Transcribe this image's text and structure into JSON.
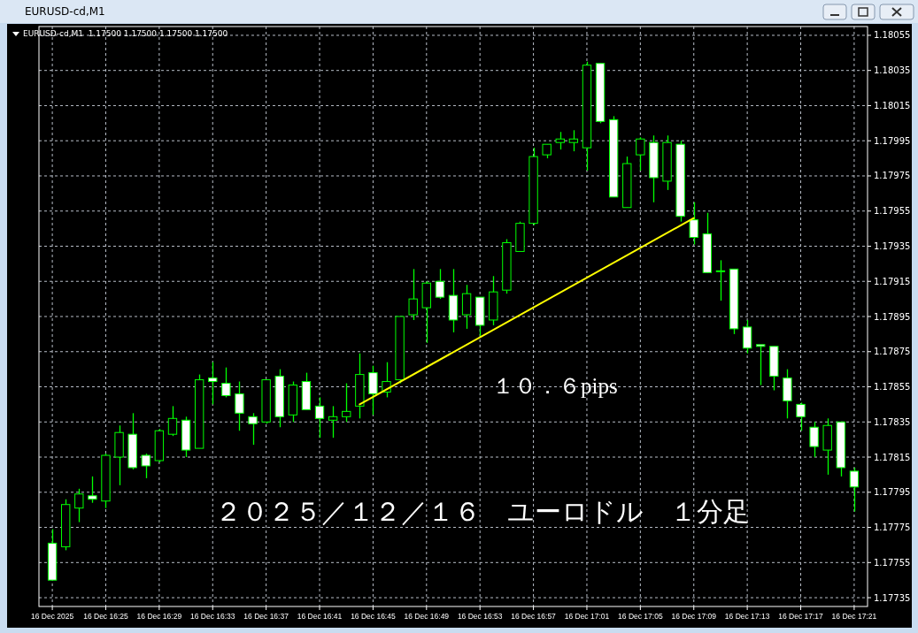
{
  "chart_data": {
    "type": "candlestick",
    "title": "EURUSD-cd,M1",
    "subtitle": "EURUSD-cd,M1  1.17500 1.17500 1.17500 1.17500",
    "annotations": [
      "１０．６pips",
      "２０２５／１２／１６　ユーロドル　１分足"
    ],
    "x": [
      "2025-12-16T16:21",
      "2025-12-16T16:22",
      "2025-12-16T16:23",
      "2025-12-16T16:24",
      "2025-12-16T16:25",
      "2025-12-16T16:26",
      "2025-12-16T16:27",
      "2025-12-16T16:28",
      "2025-12-16T16:29",
      "2025-12-16T16:30",
      "2025-12-16T16:31",
      "2025-12-16T16:32",
      "2025-12-16T16:33",
      "2025-12-16T16:34",
      "2025-12-16T16:35",
      "2025-12-16T16:36",
      "2025-12-16T16:37",
      "2025-12-16T16:38",
      "2025-12-16T16:39",
      "2025-12-16T16:40",
      "2025-12-16T16:41",
      "2025-12-16T16:42",
      "2025-12-16T16:43",
      "2025-12-16T16:44",
      "2025-12-16T16:45",
      "2025-12-16T16:46",
      "2025-12-16T16:47",
      "2025-12-16T16:48",
      "2025-12-16T16:49",
      "2025-12-16T16:50",
      "2025-12-16T16:51",
      "2025-12-16T16:52",
      "2025-12-16T16:53",
      "2025-12-16T16:54",
      "2025-12-16T16:55",
      "2025-12-16T16:56",
      "2025-12-16T16:57",
      "2025-12-16T16:58",
      "2025-12-16T16:59",
      "2025-12-16T17:00",
      "2025-12-16T17:01",
      "2025-12-16T17:02",
      "2025-12-16T17:03",
      "2025-12-16T17:04",
      "2025-12-16T17:05",
      "2025-12-16T17:06",
      "2025-12-16T17:07",
      "2025-12-16T17:08",
      "2025-12-16T17:09",
      "2025-12-16T17:10",
      "2025-12-16T17:11",
      "2025-12-16T17:12",
      "2025-12-16T17:13",
      "2025-12-16T17:14",
      "2025-12-16T17:15",
      "2025-12-16T17:16",
      "2025-12-16T17:17",
      "2025-12-16T17:18",
      "2025-12-16T17:19",
      "2025-12-16T17:20",
      "2025-12-16T17:21"
    ],
    "series": [
      {
        "color": "#00ff00",
        "ohlc": [
          [
            1.17766,
            1.17774,
            1.17745,
            1.17745
          ],
          [
            1.17764,
            1.17791,
            1.17762,
            1.17788
          ],
          [
            1.17786,
            1.17797,
            1.17778,
            1.17794
          ],
          [
            1.17793,
            1.17804,
            1.17789,
            1.17791
          ],
          [
            1.1779,
            1.17817,
            1.17786,
            1.17816
          ],
          [
            1.17815,
            1.17833,
            1.17799,
            1.17829
          ],
          [
            1.17828,
            1.1784,
            1.17808,
            1.17809
          ],
          [
            1.17816,
            1.17817,
            1.17803,
            1.1781
          ],
          [
            1.17813,
            1.17831,
            1.17812,
            1.1783
          ],
          [
            1.17828,
            1.17844,
            1.17827,
            1.17837
          ],
          [
            1.17836,
            1.17838,
            1.17815,
            1.17819
          ],
          [
            1.1782,
            1.17862,
            1.1782,
            1.17859
          ],
          [
            1.1786,
            1.17869,
            1.17845,
            1.17858
          ],
          [
            1.17857,
            1.17866,
            1.17849,
            1.1785
          ],
          [
            1.17851,
            1.17858,
            1.1783,
            1.1784
          ],
          [
            1.17838,
            1.1784,
            1.17822,
            1.17834
          ],
          [
            1.17835,
            1.17859,
            1.17834,
            1.17859
          ],
          [
            1.17861,
            1.17865,
            1.17832,
            1.17838
          ],
          [
            1.17839,
            1.17858,
            1.17835,
            1.17856
          ],
          [
            1.17858,
            1.17863,
            1.17842,
            1.17842
          ],
          [
            1.17844,
            1.17849,
            1.17826,
            1.17837
          ],
          [
            1.17836,
            1.17844,
            1.17826,
            1.17838
          ],
          [
            1.17838,
            1.17857,
            1.17835,
            1.17841
          ],
          [
            1.17844,
            1.17874,
            1.17837,
            1.17862
          ],
          [
            1.17863,
            1.17867,
            1.17839,
            1.17851
          ],
          [
            1.17852,
            1.17869,
            1.17849,
            1.17858
          ],
          [
            1.17859,
            1.17895,
            1.17857,
            1.17895
          ],
          [
            1.17896,
            1.17922,
            1.17893,
            1.17905
          ],
          [
            1.179,
            1.17915,
            1.1788,
            1.17914
          ],
          [
            1.17915,
            1.17922,
            1.17905,
            1.17906
          ],
          [
            1.17907,
            1.17922,
            1.17886,
            1.17893
          ],
          [
            1.17896,
            1.17913,
            1.17888,
            1.17908
          ],
          [
            1.17906,
            1.17906,
            1.17884,
            1.1789
          ],
          [
            1.17893,
            1.17918,
            1.1789,
            1.17909
          ],
          [
            1.1791,
            1.17939,
            1.17908,
            1.17937
          ],
          [
            1.17932,
            1.17949,
            1.17932,
            1.17948
          ],
          [
            1.17948,
            1.17991,
            1.17947,
            1.17986
          ],
          [
            1.17987,
            1.17993,
            1.17985,
            1.17993
          ],
          [
            1.17994,
            1.18,
            1.1799,
            1.17996
          ],
          [
            1.17994,
            1.18001,
            1.17989,
            1.17996
          ],
          [
            1.17991,
            1.1804,
            1.17978,
            1.18038
          ],
          [
            1.18039,
            1.18039,
            1.18005,
            1.18006
          ],
          [
            1.18007,
            1.18009,
            1.17963,
            1.17963
          ],
          [
            1.17957,
            1.17986,
            1.17957,
            1.17982
          ],
          [
            1.17987,
            1.17997,
            1.17978,
            1.17996
          ],
          [
            1.17994,
            1.17998,
            1.1796,
            1.17974
          ],
          [
            1.17972,
            1.17998,
            1.17967,
            1.17994
          ],
          [
            1.17993,
            1.17995,
            1.17949,
            1.17952
          ],
          [
            1.1795,
            1.1796,
            1.17936,
            1.1794
          ],
          [
            1.17942,
            1.17954,
            1.1792,
            1.1792
          ],
          [
            1.17921,
            1.17927,
            1.17904,
            1.17921
          ],
          [
            1.17922,
            1.17922,
            1.17885,
            1.17888
          ],
          [
            1.17889,
            1.17893,
            1.17874,
            1.17877
          ],
          [
            1.17879,
            1.17879,
            1.17856,
            1.17878
          ],
          [
            1.17878,
            1.17878,
            1.17853,
            1.17861
          ],
          [
            1.1786,
            1.17865,
            1.17837,
            1.17847
          ],
          [
            1.17845,
            1.17846,
            1.1783,
            1.17838
          ],
          [
            1.17832,
            1.17835,
            1.17815,
            1.17821
          ],
          [
            1.17819,
            1.17837,
            1.17805,
            1.17833
          ],
          [
            1.17835,
            1.17835,
            1.17804,
            1.17809
          ],
          [
            1.17807,
            1.17809,
            1.17784,
            1.17798
          ]
        ]
      },
      {
        "color": "#ffff00",
        "type": "line",
        "x": [
          "2025-12-16T16:44",
          "2025-12-16T17:09"
        ],
        "values": [
          1.17845,
          1.17951
        ]
      }
    ],
    "xlim": [
      "2025-12-16T16:20",
      "2025-12-16T17:22"
    ],
    "xticks": [
      {
        "value": "2025-12-16T16:21",
        "label": "16 Dec 2025"
      },
      {
        "value": "2025-12-16T16:25",
        "label": "16 Dec 16:25"
      },
      {
        "value": "2025-12-16T16:29",
        "label": "16 Dec 16:29"
      },
      {
        "value": "2025-12-16T16:33",
        "label": "16 Dec 16:33"
      },
      {
        "value": "2025-12-16T16:37",
        "label": "16 Dec 16:37"
      },
      {
        "value": "2025-12-16T16:41",
        "label": "16 Dec 16:41"
      },
      {
        "value": "2025-12-16T16:45",
        "label": "16 Dec 16:45"
      },
      {
        "value": "2025-12-16T16:49",
        "label": "16 Dec 16:49"
      },
      {
        "value": "2025-12-16T16:53",
        "label": "16 Dec 16:53"
      },
      {
        "value": "2025-12-16T16:57",
        "label": "16 Dec 16:57"
      },
      {
        "value": "2025-12-16T17:01",
        "label": "16 Dec 17:01"
      },
      {
        "value": "2025-12-16T17:05",
        "label": "16 Dec 17:05"
      },
      {
        "value": "2025-12-16T17:09",
        "label": "16 Dec 17:09"
      },
      {
        "value": "2025-12-16T17:13",
        "label": "16 Dec 17:13"
      },
      {
        "value": "2025-12-16T17:17",
        "label": "16 Dec 17:17"
      },
      {
        "value": "2025-12-16T17:21",
        "label": "16 Dec 17:21"
      }
    ],
    "ylim": [
      1.1773,
      1.1806
    ],
    "yticks": [
      1.17735,
      1.17755,
      1.17775,
      1.17795,
      1.17815,
      1.17835,
      1.17855,
      1.17875,
      1.17895,
      1.17915,
      1.17935,
      1.17955,
      1.17975,
      1.17995,
      1.18015,
      1.18035,
      1.18055
    ],
    "grid": true
  }
}
